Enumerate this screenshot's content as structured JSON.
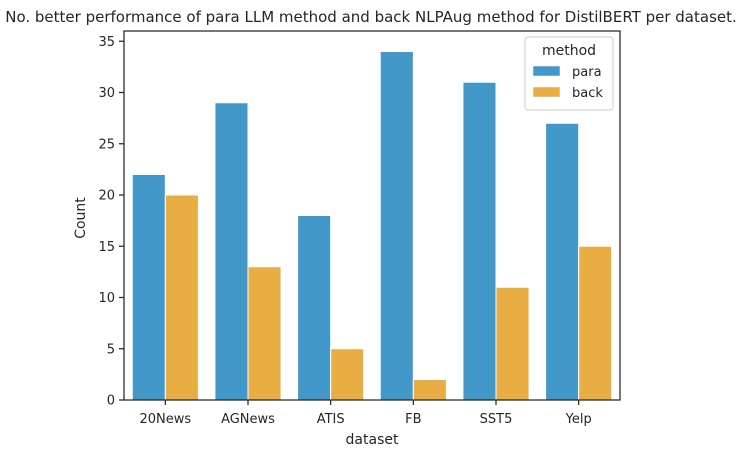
{
  "chart_data": {
    "type": "bar",
    "title": "No. better performance of para LLM method and back NLPAug method for DistilBERT per dataset.",
    "xlabel": "dataset",
    "ylabel": "Count",
    "categories": [
      "20News",
      "AGNews",
      "ATIS",
      "FB",
      "SST5",
      "Yelp"
    ],
    "series": [
      {
        "name": "para",
        "values": [
          22,
          29,
          18,
          34,
          31,
          27
        ],
        "color": "#4298c9"
      },
      {
        "name": "back",
        "values": [
          20,
          13,
          5,
          2,
          11,
          15
        ],
        "color": "#e8ad43"
      }
    ],
    "ylim": [
      0,
      36
    ],
    "yticks": [
      0,
      5,
      10,
      15,
      20,
      25,
      30,
      35
    ],
    "grid": false,
    "legend": {
      "title": "method",
      "placement": "top-right"
    }
  }
}
